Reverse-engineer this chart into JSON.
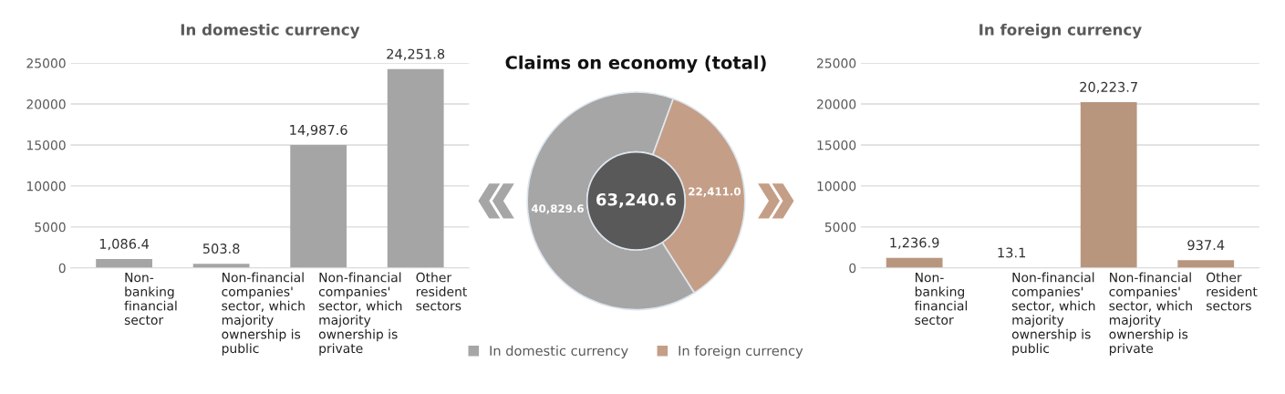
{
  "chart_data": [
    {
      "type": "bar",
      "title": "In domestic currency",
      "categories": [
        "Non-\nbanking\nfinancial\nsector",
        "Non-financial\ncompanies'\nsector, which\nmajority\nownership is\npublic",
        "Non-financial\ncompanies'\nsector, which\nmajority\nownership is\nprivate",
        "Other\nresident\nsectors"
      ],
      "values": [
        1086.4,
        503.8,
        14987.6,
        24251.8
      ],
      "value_labels": [
        "1,086.4",
        "503.8",
        "14,987.6",
        "24,251.8"
      ],
      "color": "#a5a5a5",
      "ylim": [
        0,
        25000
      ],
      "yticks": [
        0,
        5000,
        10000,
        15000,
        20000,
        25000
      ],
      "grid": "y",
      "legend": false
    },
    {
      "type": "donut",
      "title": "Claims on economy (total)",
      "categories": [
        "In domestic currency",
        "In foreign currency"
      ],
      "values": [
        40829.6,
        22411.0
      ],
      "value_labels": [
        "40,829.6",
        "22,411.0"
      ],
      "colors": [
        "#a6a6a6",
        "#c49e86"
      ],
      "annotations": [
        "63,240.6"
      ],
      "legend": "bottom"
    },
    {
      "type": "bar",
      "title": "In foreign currency",
      "categories": [
        "Non-\nbanking\nfinancial\nsector",
        "Non-financial\ncompanies'\nsector, which\nmajority\nownership is\npublic",
        "Non-financial\ncompanies'\nsector, which\nmajority\nownership is\nprivate",
        "Other\nresident\nsectors"
      ],
      "values": [
        1236.9,
        13.1,
        20223.7,
        937.4
      ],
      "value_labels": [
        "1,236.9",
        "13.1",
        "20,223.7",
        "937.4"
      ],
      "color": "#b8967e",
      "ylim": [
        0,
        25000
      ],
      "yticks": [
        0,
        5000,
        10000,
        15000,
        20000,
        25000
      ],
      "grid": "y",
      "legend": false
    }
  ]
}
